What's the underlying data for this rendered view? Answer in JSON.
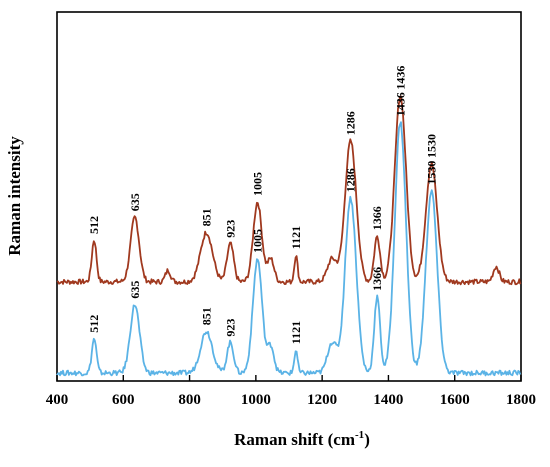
{
  "chart_data": {
    "type": "line",
    "xlabel": "Raman shift (cm",
    "xlabel_sup": "-1",
    "xlabel_close": ")",
    "ylabel": "Raman intensity",
    "xlim": [
      400,
      1800
    ],
    "x_ticks": [
      400,
      600,
      800,
      1000,
      1200,
      1400,
      1600,
      1800
    ],
    "y_ticks_shown": false,
    "grid": false,
    "legend": "none",
    "series": [
      {
        "color": "#a0391f",
        "baseline": 0.12,
        "peaks": [
          {
            "x": 512,
            "h": 0.055,
            "w": 7,
            "label": "512"
          },
          {
            "x": 635,
            "h": 0.085,
            "w": 13,
            "label": "635"
          },
          {
            "x": 735,
            "h": 0.015,
            "w": 8,
            "label": ""
          },
          {
            "x": 851,
            "h": 0.065,
            "w": 18,
            "label": "851"
          },
          {
            "x": 923,
            "h": 0.05,
            "w": 10,
            "label": "923"
          },
          {
            "x": 1005,
            "h": 0.105,
            "w": 13,
            "label": "1005"
          },
          {
            "x": 1045,
            "h": 0.03,
            "w": 10,
            "label": ""
          },
          {
            "x": 1121,
            "h": 0.035,
            "w": 5,
            "label": "1121"
          },
          {
            "x": 1230,
            "h": 0.03,
            "w": 14,
            "label": ""
          },
          {
            "x": 1286,
            "h": 0.185,
            "w": 17,
            "label": "1286"
          },
          {
            "x": 1366,
            "h": 0.06,
            "w": 9,
            "label": "1366"
          },
          {
            "x": 1436,
            "h": 0.245,
            "w": 17,
            "label": "1436"
          },
          {
            "x": 1530,
            "h": 0.155,
            "w": 17,
            "label": "1530"
          },
          {
            "x": 1725,
            "h": 0.02,
            "w": 9,
            "label": ""
          }
        ]
      },
      {
        "color": "#5bb3e6",
        "baseline": 0.0,
        "peaks": [
          {
            "x": 512,
            "h": 0.045,
            "w": 7,
            "label": "512"
          },
          {
            "x": 635,
            "h": 0.09,
            "w": 14,
            "label": "635"
          },
          {
            "x": 851,
            "h": 0.055,
            "w": 18,
            "label": "851"
          },
          {
            "x": 923,
            "h": 0.04,
            "w": 10,
            "label": "923"
          },
          {
            "x": 1005,
            "h": 0.15,
            "w": 14,
            "label": "1005"
          },
          {
            "x": 1045,
            "h": 0.035,
            "w": 10,
            "label": ""
          },
          {
            "x": 1121,
            "h": 0.03,
            "w": 5,
            "label": "1121"
          },
          {
            "x": 1230,
            "h": 0.04,
            "w": 14,
            "label": ""
          },
          {
            "x": 1286,
            "h": 0.23,
            "w": 17,
            "label": "1286"
          },
          {
            "x": 1366,
            "h": 0.1,
            "w": 9,
            "label": "1366"
          },
          {
            "x": 1436,
            "h": 0.33,
            "w": 17,
            "label": "1436"
          },
          {
            "x": 1530,
            "h": 0.24,
            "w": 17,
            "label": "1530"
          }
        ]
      }
    ]
  }
}
